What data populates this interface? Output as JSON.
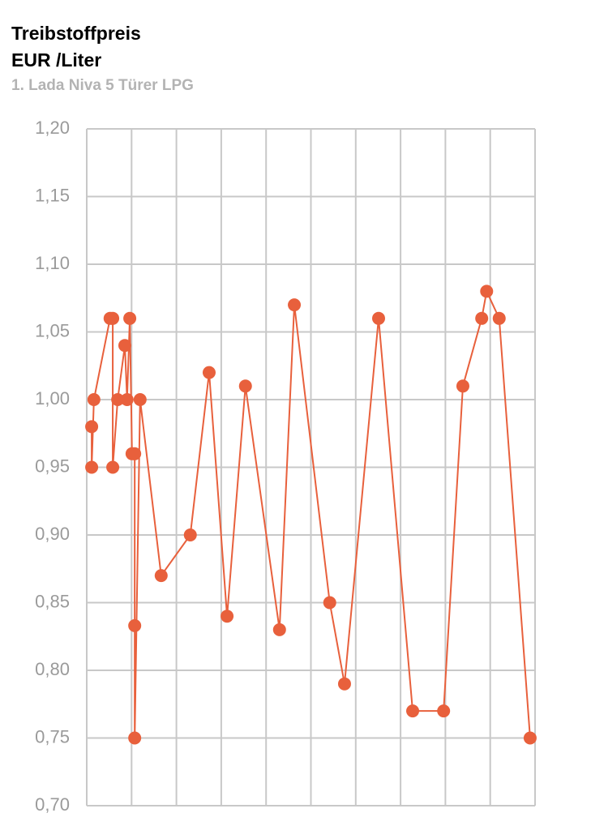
{
  "chart_data": {
    "type": "line",
    "title": "Treibstoffpreis",
    "y_label": "EUR /Liter",
    "subtitle": "1. Lada Niva 5 Türer LPG",
    "color": "#e8603c",
    "grid": true,
    "x": [
      0.11,
      0.11,
      0.16,
      0.52,
      0.58,
      0.58,
      0.69,
      0.85,
      0.9,
      0.96,
      1.01,
      1.07,
      1.07,
      1.07,
      1.19,
      1.66,
      2.31,
      2.73,
      3.13,
      3.54,
      4.3,
      4.63,
      5.42,
      5.75,
      6.51,
      7.27,
      7.96,
      8.39,
      8.81,
      8.92,
      9.2,
      9.89
    ],
    "values": [
      0.98,
      0.95,
      1.0,
      1.06,
      1.06,
      0.95,
      1.0,
      1.04,
      1.0,
      1.06,
      0.96,
      0.96,
      0.833,
      0.75,
      1.0,
      0.87,
      0.9,
      1.02,
      0.84,
      1.01,
      0.83,
      1.07,
      0.85,
      0.79,
      1.06,
      0.77,
      0.77,
      1.01,
      1.06,
      1.08,
      1.06,
      0.75
    ],
    "xlim": [
      0,
      10
    ],
    "xticks": [
      0,
      1,
      2,
      3,
      4,
      5,
      6,
      7,
      8,
      9,
      10
    ],
    "ylim": [
      0.7,
      1.2
    ],
    "yticks": [
      {
        "value": 0.7,
        "label": "0,70"
      },
      {
        "value": 0.75,
        "label": "0,75"
      },
      {
        "value": 0.8,
        "label": "0,80"
      },
      {
        "value": 0.85,
        "label": "0,85"
      },
      {
        "value": 0.9,
        "label": "0,90"
      },
      {
        "value": 0.95,
        "label": "0,95"
      },
      {
        "value": 1.0,
        "label": "1,00"
      },
      {
        "value": 1.05,
        "label": "1,05"
      },
      {
        "value": 1.1,
        "label": "1,10"
      },
      {
        "value": 1.15,
        "label": "1,15"
      },
      {
        "value": 1.2,
        "label": "1,20"
      }
    ]
  }
}
